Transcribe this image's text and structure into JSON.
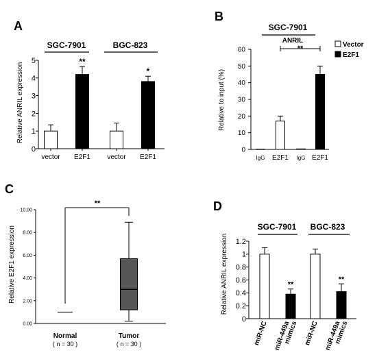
{
  "chart_data": [
    {
      "panel": "A",
      "type": "bar",
      "groups": [
        "SGC-7901",
        "BGC-823"
      ],
      "categories": [
        "vector",
        "E2F1",
        "vector",
        "E2F1"
      ],
      "values": [
        1.0,
        4.2,
        1.0,
        3.8
      ],
      "errors": [
        0.35,
        0.45,
        0.45,
        0.3
      ],
      "fills": [
        "#ffffff",
        "#000000",
        "#ffffff",
        "#000000"
      ],
      "significance": [
        "",
        "**",
        "",
        "*"
      ],
      "ylabel": "Relative ANRIL expression",
      "ylim": [
        0,
        5
      ],
      "yticks": [
        "0",
        "1",
        "2",
        "3",
        "4",
        "5"
      ]
    },
    {
      "panel": "B",
      "type": "bar",
      "group": "SGC-7901",
      "target": "ANRIL",
      "categories": [
        "IgG",
        "E2F1",
        "IgG",
        "E2F1"
      ],
      "values": [
        0.2,
        17,
        0.3,
        45
      ],
      "errors": [
        0,
        3,
        0,
        5
      ],
      "fills": [
        "#ffffff",
        "#ffffff",
        "#000000",
        "#000000"
      ],
      "significance": "**",
      "legend": [
        {
          "name": "Vector",
          "fill": "#ffffff"
        },
        {
          "name": "E2F1",
          "fill": "#000000"
        }
      ],
      "legend_position": "top-right",
      "ylabel": "Relative to input (%)",
      "ylim": [
        0,
        60
      ],
      "yticks": [
        "0",
        "10",
        "20",
        "30",
        "40",
        "50",
        "60"
      ]
    },
    {
      "panel": "C",
      "type": "box",
      "categories": [
        "Normal",
        "Tumor"
      ],
      "sublabels": [
        "( n = 30 )",
        "( n = 30 )"
      ],
      "boxes": [
        {
          "median": 1.0,
          "q1": 1.0,
          "q3": 1.0,
          "min": 1.0,
          "max": 1.0
        },
        {
          "median": 3.0,
          "q1": 1.2,
          "q3": 5.7,
          "min": 0.2,
          "max": 8.9
        }
      ],
      "significance": "**",
      "ylabel": "Relative E2F1 expression",
      "ylim": [
        0,
        10
      ],
      "yticks": [
        "0.00",
        "2.00",
        "4.00",
        "6.00",
        "8.00",
        "10.00"
      ]
    },
    {
      "panel": "D",
      "type": "bar",
      "groups": [
        "SGC-7901",
        "BGC-823"
      ],
      "categories": [
        "miR-NC",
        "miR-449a mimics",
        "miR-NC",
        "miR-449a mimics"
      ],
      "category_lines": [
        [
          "miR-NC"
        ],
        [
          "miR-449a",
          "mimics"
        ],
        [
          "miR-NC"
        ],
        [
          "miR-449a",
          "mimics"
        ]
      ],
      "values": [
        1.0,
        0.38,
        1.0,
        0.42
      ],
      "errors": [
        0.1,
        0.08,
        0.08,
        0.12
      ],
      "fills": [
        "#ffffff",
        "#000000",
        "#ffffff",
        "#000000"
      ],
      "significance": [
        "",
        "**",
        "",
        "**"
      ],
      "ylabel": "Relative ANRIL expression",
      "ylim": [
        0,
        1.2
      ],
      "yticks": [
        "0",
        "0.2",
        "0.4",
        "0.6",
        "0.8",
        "1",
        "1.2"
      ]
    }
  ]
}
